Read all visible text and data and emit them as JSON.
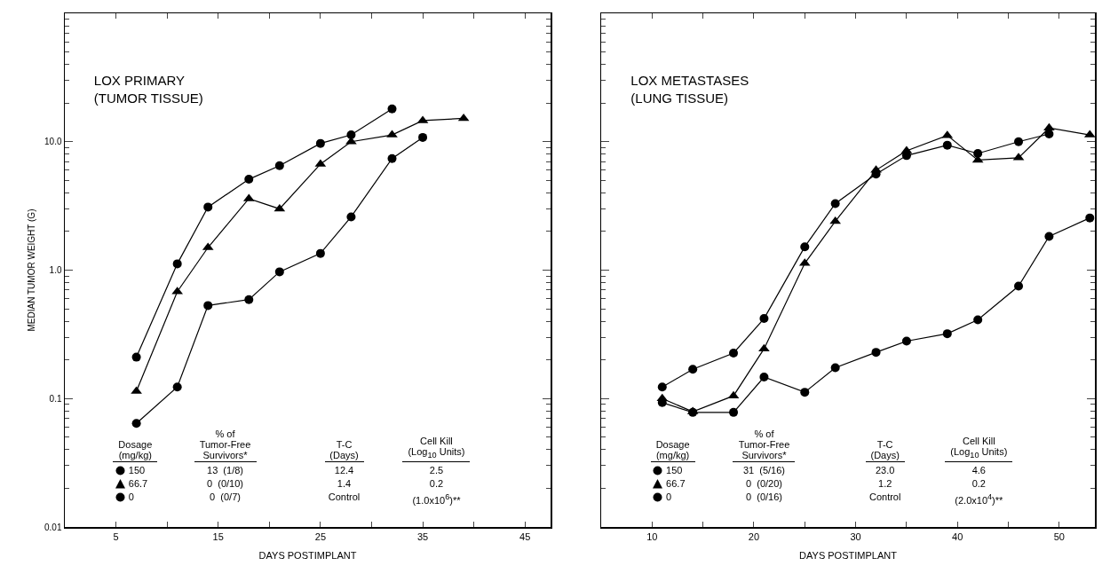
{
  "chart_data": [
    {
      "type": "line",
      "title": "LOX PRIMARY\n(TUMOR TISSUE)",
      "xlabel": "DAYS POSTIMPLANT",
      "ylabel": "MEDIAN TUMOR WEIGHT (G)",
      "legend_title": "Dosage\n(mg/kg)",
      "legend": "bottom left",
      "log": "y",
      "annotations": [
        "% of\nTumor-Free\nSurvivors*",
        "T-C\n(Days)",
        "Cell Kill\n(Log$_{10}$ Units)",
        "13  (1/8)\n0  (0/10)\n0  (0/7)",
        "12.4\n1.4\nControl",
        "2.5\n0.2\n(1.0x10$^{6}$)**"
      ],
      "xlim": [
        0,
        47.5
      ],
      "xticks": [
        5,
        {
          "value": 10,
          "label": null
        },
        15,
        {
          "value": 20,
          "label": null
        },
        25,
        {
          "value": 30,
          "label": null
        },
        35,
        {
          "value": 40,
          "label": null
        },
        45
      ],
      "ylim": [
        0.01,
        100
      ],
      "yticks": [
        0.01,
        0.1,
        {
          "value": 1,
          "label": "1.0"
        },
        {
          "value": 10,
          "label": "10.0"
        },
        {
          "value": 100,
          "label": null
        }
      ],
      "series": [
        {
          "name": "150",
          "color": "#000000",
          "marker": "circle",
          "x": [
            7,
            11,
            14,
            18,
            21,
            25,
            28,
            32,
            35
          ],
          "values": [
            0.064,
            0.123,
            0.53,
            0.59,
            0.97,
            1.35,
            2.6,
            7.4,
            10.8
          ]
        },
        {
          "name": "66.7",
          "color": "#000000",
          "marker": "triangle",
          "x": [
            7,
            11,
            14,
            18,
            21,
            25,
            28,
            32,
            35,
            39
          ],
          "values": [
            0.114,
            0.68,
            1.5,
            3.6,
            3.0,
            6.7,
            10.0,
            11.3,
            14.6,
            15.2
          ]
        },
        {
          "name": "0",
          "color": "#000000",
          "marker": "circle",
          "x": [
            7,
            11,
            14,
            18,
            21,
            25,
            28,
            32
          ],
          "values": [
            0.21,
            1.12,
            3.1,
            5.1,
            6.5,
            9.7,
            11.3,
            18
          ]
        }
      ]
    },
    {
      "type": "line",
      "title": "LOX METASTASES\n(LUNG TISSUE)",
      "xlabel": "DAYS POSTIMPLANT",
      "legend_title": "Dosage\n(mg/kg)",
      "legend": "bottom left",
      "log": "y",
      "tick_labels": "x",
      "annotations": [
        "% of\nTumor-Free\nSurvivors*",
        "T-C\n(Days)",
        "Cell Kill\n(Log$_{10}$ Units)",
        "31  (5/16)\n0  (0/20)\n0  (0/16)",
        "23.0\n1.2\nControl",
        "4.6\n0.2\n(2.0x10$^{4}$)**"
      ],
      "xlim": [
        5,
        53.5
      ],
      "xticks": [
        10,
        {
          "value": 15,
          "label": null
        },
        20,
        {
          "value": 25,
          "label": null
        },
        30,
        {
          "value": 35,
          "label": null
        },
        40,
        {
          "value": 45,
          "label": null
        },
        50
      ],
      "ylim": [
        0.01,
        100
      ],
      "yticks": [
        0.01,
        0.1,
        1,
        10,
        100
      ],
      "series": [
        {
          "name": "150",
          "color": "#000000",
          "marker": "circle",
          "x": [
            11,
            14,
            18,
            21,
            25,
            28,
            32,
            35,
            39,
            42,
            46,
            49,
            53
          ],
          "values": [
            0.093,
            0.078,
            0.078,
            0.147,
            0.112,
            0.174,
            0.229,
            0.28,
            0.32,
            0.41,
            0.75,
            1.83,
            2.55
          ]
        },
        {
          "name": "66.7",
          "color": "#000000",
          "marker": "triangle",
          "x": [
            11,
            14,
            18,
            21,
            25,
            28,
            32,
            35,
            39,
            42,
            46,
            49,
            53
          ],
          "values": [
            0.1,
            0.079,
            0.105,
            0.244,
            1.13,
            2.4,
            6.0,
            8.5,
            11.2,
            7.2,
            7.5,
            12.8,
            11.3
          ]
        },
        {
          "name": "0",
          "color": "#000000",
          "marker": "circle",
          "x": [
            11,
            14,
            18,
            21,
            25,
            28,
            32,
            35,
            39,
            42,
            46,
            49
          ],
          "values": [
            0.123,
            0.169,
            0.226,
            0.42,
            1.52,
            3.3,
            5.6,
            7.8,
            9.4,
            8.1,
            10.0,
            11.5
          ]
        }
      ]
    }
  ]
}
